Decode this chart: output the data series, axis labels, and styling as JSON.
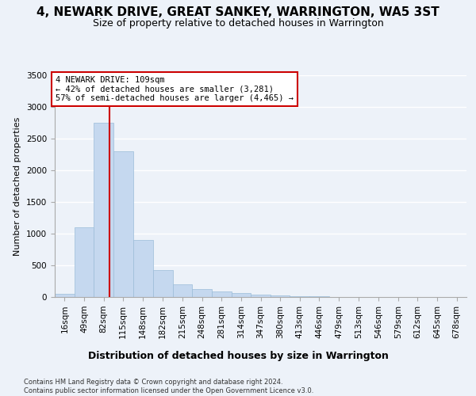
{
  "title": "4, NEWARK DRIVE, GREAT SANKEY, WARRINGTON, WA5 3ST",
  "subtitle": "Size of property relative to detached houses in Warrington",
  "xlabel": "Distribution of detached houses by size in Warrington",
  "ylabel": "Number of detached properties",
  "footer_line1": "Contains HM Land Registry data © Crown copyright and database right 2024.",
  "footer_line2": "Contains public sector information licensed under the Open Government Licence v3.0.",
  "bin_labels": [
    "16sqm",
    "49sqm",
    "82sqm",
    "115sqm",
    "148sqm",
    "182sqm",
    "215sqm",
    "248sqm",
    "281sqm",
    "314sqm",
    "347sqm",
    "380sqm",
    "413sqm",
    "446sqm",
    "479sqm",
    "513sqm",
    "546sqm",
    "579sqm",
    "612sqm",
    "645sqm",
    "678sqm"
  ],
  "bar_values": [
    50,
    1100,
    2750,
    2300,
    900,
    430,
    200,
    120,
    90,
    65,
    40,
    25,
    15,
    10,
    5,
    3,
    2,
    1,
    0,
    0,
    0
  ],
  "bin_edges": [
    16,
    49,
    82,
    115,
    148,
    182,
    215,
    248,
    281,
    314,
    347,
    380,
    413,
    446,
    479,
    513,
    546,
    579,
    612,
    645,
    678,
    711
  ],
  "bar_color": "#c5d8ef",
  "bar_edgecolor": "#9bbcd8",
  "property_size": 109,
  "vline_color": "#cc0000",
  "annotation_line1": "4 NEWARK DRIVE: 109sqm",
  "annotation_line2": "← 42% of detached houses are smaller (3,281)",
  "annotation_line3": "57% of semi-detached houses are larger (4,465) →",
  "ylim": [
    0,
    3500
  ],
  "yticks": [
    0,
    500,
    1000,
    1500,
    2000,
    2500,
    3000,
    3500
  ],
  "background_color": "#edf2f9",
  "grid_color": "#ffffff",
  "title_fontsize": 11,
  "subtitle_fontsize": 9,
  "ylabel_fontsize": 8,
  "xlabel_fontsize": 9,
  "tick_fontsize": 7.5,
  "annotation_fontsize": 7.5,
  "footer_fontsize": 6
}
